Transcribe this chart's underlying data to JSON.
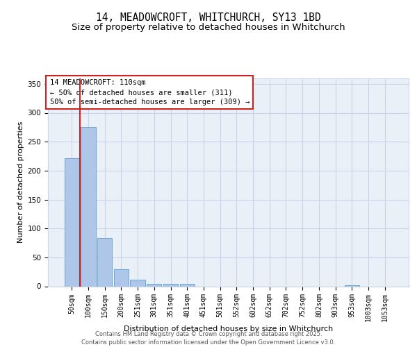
{
  "title_line1": "14, MEADOWCROFT, WHITCHURCH, SY13 1BD",
  "title_line2": "Size of property relative to detached houses in Whitchurch",
  "xlabel": "Distribution of detached houses by size in Whitchurch",
  "ylabel": "Number of detached properties",
  "bar_values": [
    222,
    275,
    84,
    30,
    12,
    4,
    4,
    4,
    0,
    0,
    0,
    0,
    0,
    0,
    0,
    0,
    0,
    2,
    0,
    0
  ],
  "categories": [
    "50sqm",
    "100sqm",
    "150sqm",
    "200sqm",
    "251sqm",
    "301sqm",
    "351sqm",
    "401sqm",
    "451sqm",
    "501sqm",
    "552sqm",
    "602sqm",
    "652sqm",
    "702sqm",
    "752sqm",
    "802sqm",
    "903sqm",
    "953sqm",
    "1003sqm",
    "1053sqm"
  ],
  "bar_color": "#aec6e8",
  "bar_edgecolor": "#5a9fd4",
  "bg_color": "#eaf0f8",
  "grid_color": "#c8d4e8",
  "vline_color": "#cc2222",
  "annotation_text": "14 MEADOWCROFT: 110sqm\n← 50% of detached houses are smaller (311)\n50% of semi-detached houses are larger (309) →",
  "annotation_box_edgecolor": "#cc2222",
  "ylim": [
    0,
    360
  ],
  "yticks": [
    0,
    50,
    100,
    150,
    200,
    250,
    300,
    350
  ],
  "footnote": "Contains HM Land Registry data © Crown copyright and database right 2025.\nContains public sector information licensed under the Open Government Licence v3.0.",
  "title_fontsize": 10.5,
  "subtitle_fontsize": 9.5,
  "axis_label_fontsize": 8,
  "tick_fontsize": 7,
  "annotation_fontsize": 7.5,
  "footnote_fontsize": 6
}
